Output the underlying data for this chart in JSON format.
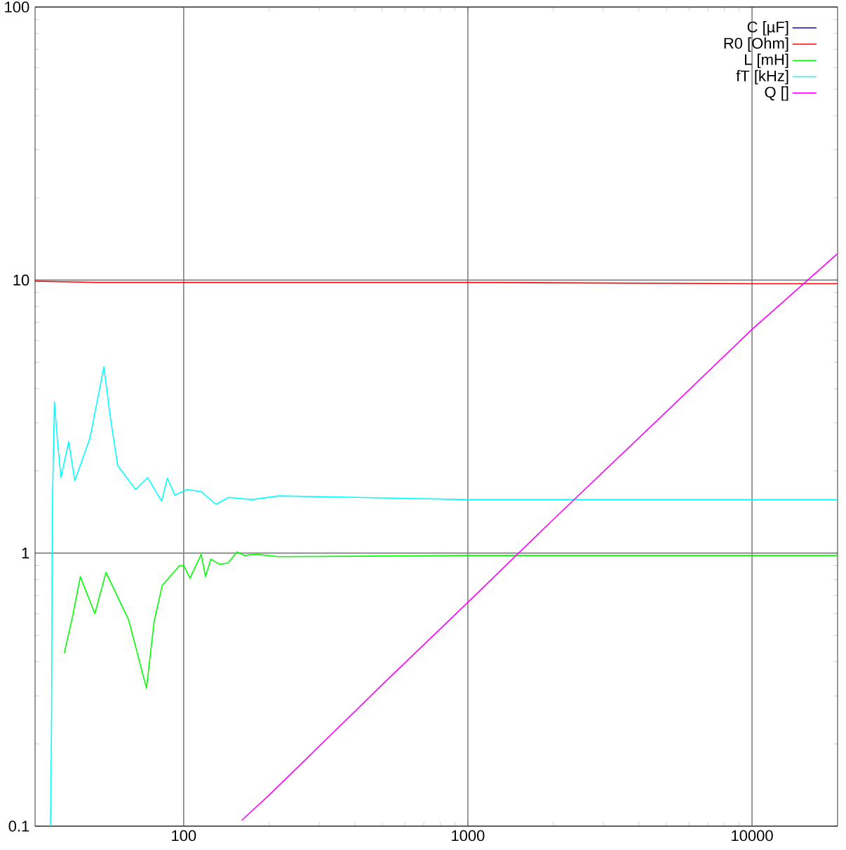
{
  "chart_data": {
    "type": "line",
    "log": "xy",
    "grid": true,
    "legend": "top right",
    "marker": "none",
    "line_style": "solid",
    "xlim": [
      30,
      20000
    ],
    "ylim": [
      0.1,
      100
    ],
    "xticks": [
      100,
      1000,
      10000
    ],
    "yticks": [
      0.1,
      1,
      10,
      100
    ],
    "series": [
      {
        "name": "C [µF]",
        "color": "#0000ff"
      },
      {
        "name": "R0 [Ohm]",
        "color": "#ff0000",
        "x": [
          30,
          50,
          100,
          200,
          1000,
          10000,
          20000
        ],
        "values": [
          9.9,
          9.8,
          9.8,
          9.8,
          9.8,
          9.7,
          9.7
        ]
      },
      {
        "name": "L [mH]",
        "color": "#00ff00",
        "x": [
          38,
          40.7,
          43.3,
          45,
          48.7,
          53.3,
          64,
          74,
          78.7,
          84,
          96.7,
          100,
          105.3,
          115.3,
          119.3,
          124.7,
          134,
          143.3,
          154,
          163.3,
          180,
          216,
          1000,
          20000
        ],
        "values": [
          0.43,
          0.59,
          0.82,
          0.74,
          0.6,
          0.85,
          0.57,
          0.32,
          0.56,
          0.76,
          0.9,
          0.9,
          0.81,
          0.99,
          0.82,
          0.95,
          0.91,
          0.92,
          1.01,
          0.98,
          0.99,
          0.97,
          0.98,
          0.98
        ]
      },
      {
        "name": "fT [kHz]",
        "color": "#00ffff",
        "x": [
          34,
          34.3,
          34.5,
          35.1,
          35.9,
          37,
          39.4,
          41.4,
          46.8,
          52.4,
          55.2,
          58.6,
          67.8,
          74.7,
          83.7,
          87.6,
          93.1,
          103,
          115,
          130,
          144,
          174,
          216,
          1000,
          20000
        ],
        "values": [
          0.1,
          0.25,
          1.46,
          3.58,
          2.64,
          1.89,
          2.56,
          1.84,
          2.64,
          4.81,
          3.15,
          2.09,
          1.71,
          1.89,
          1.55,
          1.88,
          1.63,
          1.71,
          1.68,
          1.51,
          1.6,
          1.57,
          1.62,
          1.57,
          1.57
        ]
      },
      {
        "name": "Q []",
        "color": "#ff00ff",
        "x": [
          160,
          200,
          500,
          1000,
          2000,
          5000,
          10000,
          20000
        ],
        "values": [
          0.105,
          0.13,
          0.33,
          0.66,
          1.33,
          3.3,
          6.6,
          12.5
        ]
      }
    ]
  }
}
